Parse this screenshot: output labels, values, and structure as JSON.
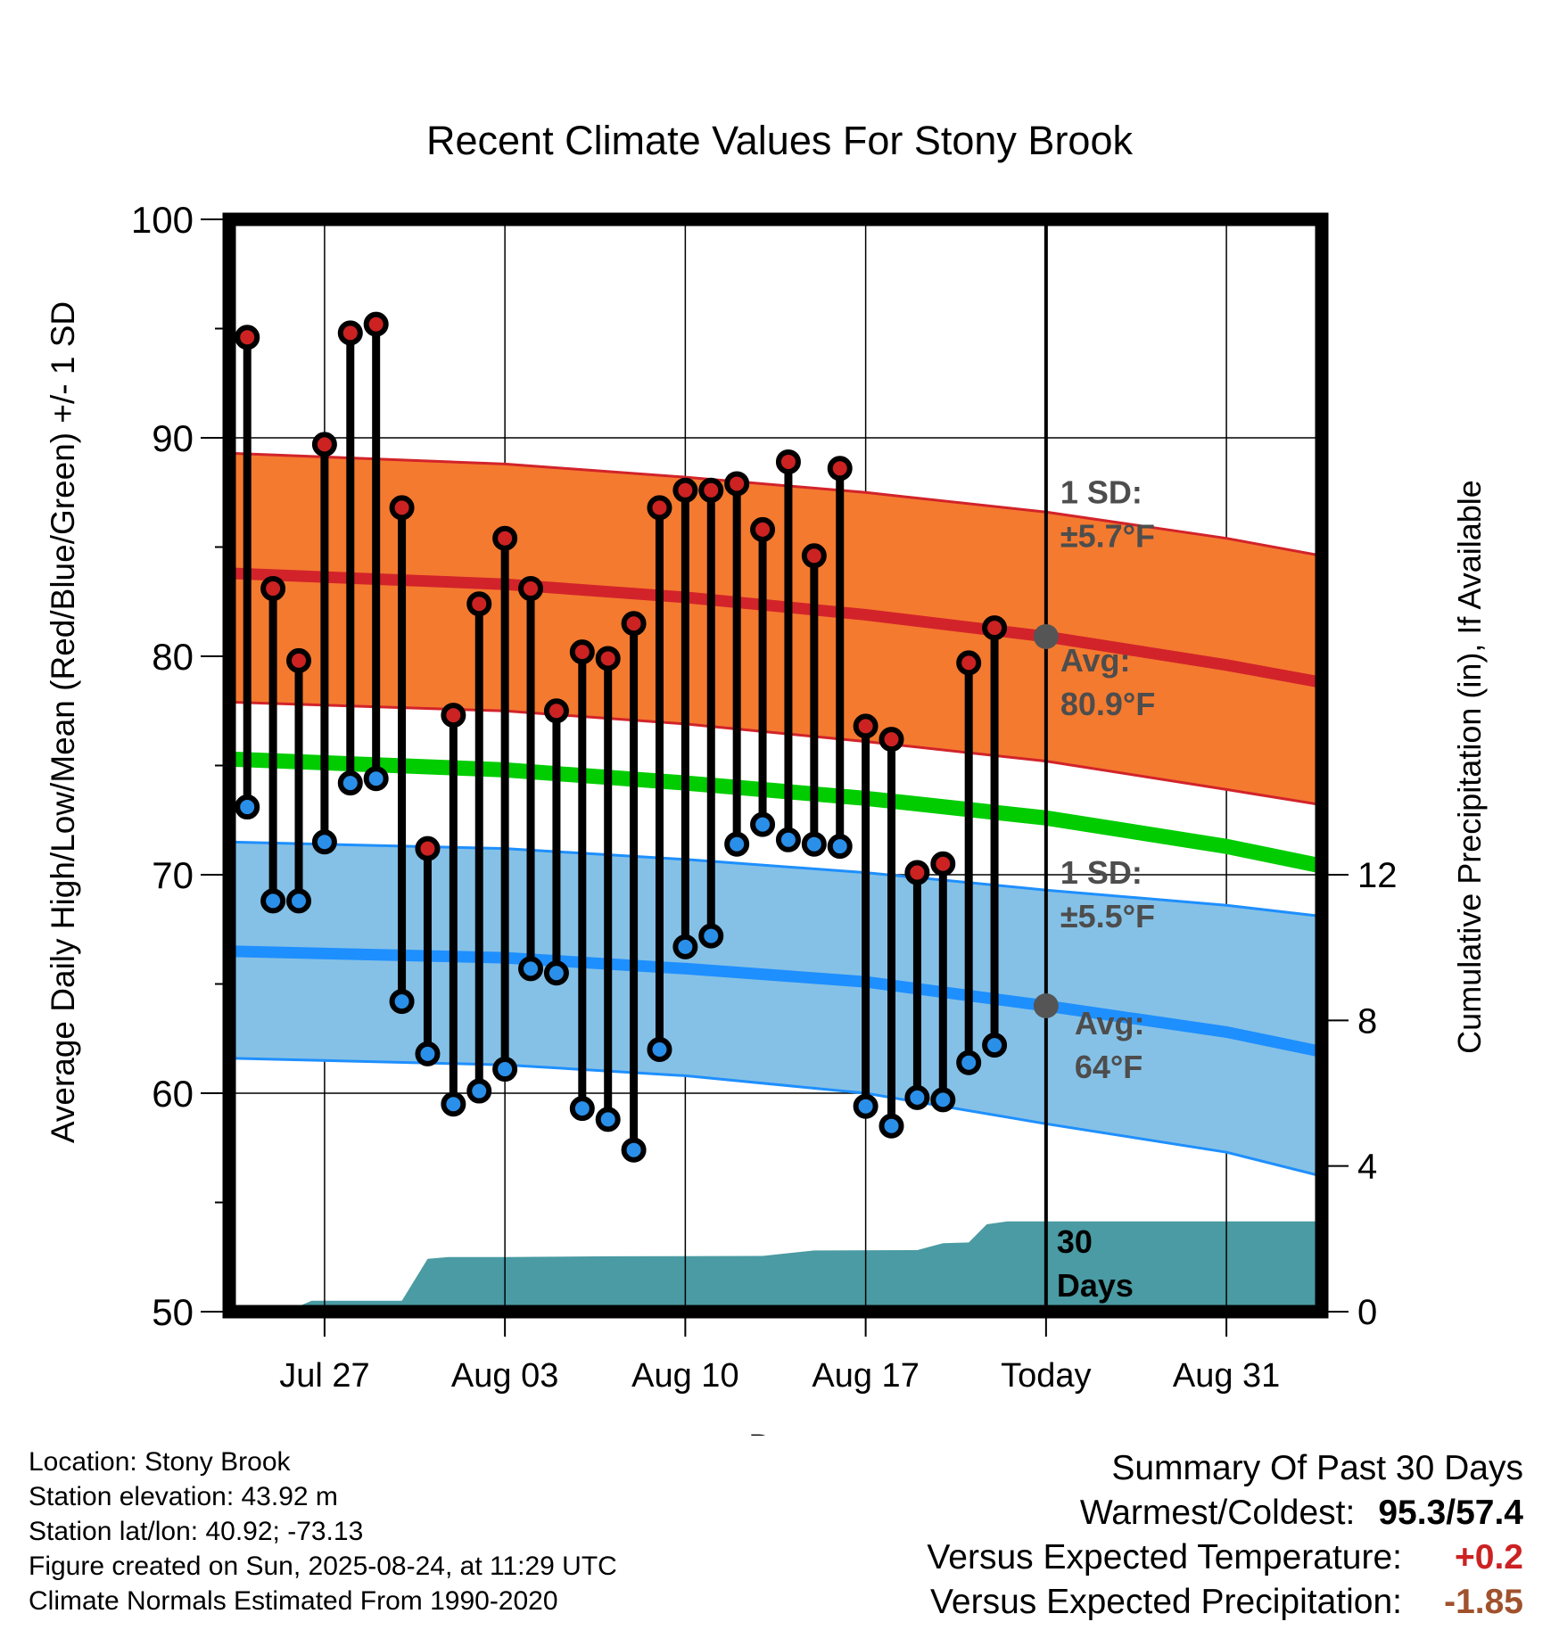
{
  "chart_data": {
    "type": "line",
    "title": "Recent Climate Values For Stony Brook",
    "xlabel": "Day",
    "ylabel": "Average Daily High/Low/Mean (Red/Blue/Green) +/- 1 SD",
    "y2label": "Cumulative Precipitation (in), If Available",
    "ylim": [
      50,
      100
    ],
    "y2lim": [
      0,
      30
    ],
    "yticks": [
      "50",
      "60",
      "70",
      "80",
      "90",
      "100"
    ],
    "y2ticks": [
      "0",
      "4",
      "8",
      "12"
    ],
    "xlim_day_index": [
      -0.7,
      41.7
    ],
    "xticks": [
      {
        "day": 3,
        "label": "Jul 27"
      },
      {
        "day": 10,
        "label": "Aug 03"
      },
      {
        "day": 17,
        "label": "Aug 10"
      },
      {
        "day": 24,
        "label": "Aug 17"
      },
      {
        "day": 31,
        "label": "Today"
      },
      {
        "day": 38,
        "label": "Aug 31"
      }
    ],
    "today_index": 31,
    "normal_high": {
      "avg": [
        [
          -0.7,
          83.8
        ],
        [
          10,
          83.3
        ],
        [
          17,
          82.7
        ],
        [
          24,
          81.9
        ],
        [
          31,
          80.9
        ],
        [
          38,
          79.6
        ],
        [
          41.7,
          78.8
        ]
      ],
      "upper": [
        [
          -0.7,
          89.3
        ],
        [
          10,
          88.8
        ],
        [
          17,
          88.2
        ],
        [
          24,
          87.5
        ],
        [
          31,
          86.6
        ],
        [
          38,
          85.4
        ],
        [
          41.7,
          84.6
        ]
      ],
      "lower": [
        [
          -0.7,
          77.9
        ],
        [
          10,
          77.5
        ],
        [
          17,
          76.9
        ],
        [
          24,
          76.1
        ],
        [
          31,
          75.2
        ],
        [
          38,
          73.9
        ],
        [
          41.7,
          73.2
        ]
      ]
    },
    "normal_mean": [
      [
        -0.7,
        75.3
      ],
      [
        10,
        74.8
      ],
      [
        17,
        74.2
      ],
      [
        24,
        73.5
      ],
      [
        31,
        72.6
      ],
      [
        38,
        71.3
      ],
      [
        41.7,
        70.4
      ]
    ],
    "normal_low": {
      "avg": [
        [
          -0.7,
          66.5
        ],
        [
          10,
          66.2
        ],
        [
          17,
          65.7
        ],
        [
          24,
          65.1
        ],
        [
          31,
          64.0
        ],
        [
          38,
          62.8
        ],
        [
          41.7,
          61.9
        ]
      ],
      "upper": [
        [
          -0.7,
          71.5
        ],
        [
          10,
          71.2
        ],
        [
          17,
          70.7
        ],
        [
          24,
          70.1
        ],
        [
          31,
          69.3
        ],
        [
          38,
          68.6
        ],
        [
          41.7,
          68.1
        ]
      ],
      "lower": [
        [
          -0.7,
          61.6
        ],
        [
          10,
          61.3
        ],
        [
          17,
          60.8
        ],
        [
          24,
          60.0
        ],
        [
          31,
          58.6
        ],
        [
          38,
          57.3
        ],
        [
          41.7,
          56.2
        ]
      ]
    },
    "observed": {
      "day_index": [
        0,
        1,
        2,
        3,
        4,
        5,
        6,
        7,
        8,
        9,
        10,
        11,
        12,
        13,
        14,
        15,
        16,
        17,
        18,
        19,
        20,
        21,
        22,
        23,
        24,
        25,
        26,
        27,
        28,
        29
      ],
      "high": [
        94.6,
        83.1,
        79.8,
        89.7,
        94.8,
        95.2,
        86.8,
        71.2,
        77.3,
        82.4,
        85.4,
        83.1,
        77.5,
        80.2,
        79.9,
        81.5,
        86.8,
        87.6,
        87.6,
        87.9,
        85.8,
        88.9,
        84.6,
        88.6,
        76.8,
        76.2,
        70.1,
        70.5,
        79.7,
        81.3
      ],
      "low": [
        73.1,
        68.8,
        68.8,
        71.5,
        74.2,
        74.4,
        64.2,
        61.8,
        59.5,
        60.1,
        61.1,
        65.7,
        65.5,
        59.3,
        58.8,
        57.4,
        62.0,
        66.7,
        67.2,
        71.4,
        72.3,
        71.6,
        71.4,
        71.3,
        59.4,
        58.5,
        59.8,
        59.7,
        61.4,
        62.2
      ]
    },
    "precip_cumulative": [
      [
        -0.7,
        0
      ],
      [
        1.5,
        0
      ],
      [
        2.5,
        0.3
      ],
      [
        6,
        0.3
      ],
      [
        7,
        1.45
      ],
      [
        7.8,
        1.5
      ],
      [
        10,
        1.5
      ],
      [
        14,
        1.52
      ],
      [
        20,
        1.53
      ],
      [
        22,
        1.68
      ],
      [
        26,
        1.69
      ],
      [
        27,
        1.88
      ],
      [
        28,
        1.9
      ],
      [
        28.7,
        2.4
      ],
      [
        29.5,
        2.48
      ],
      [
        41.7,
        2.48
      ]
    ],
    "annotations": [
      {
        "text1": "1 SD:",
        "text2": "±5.7°F",
        "series": "high_sd"
      },
      {
        "text1": "Avg:",
        "text2": "80.9°F",
        "series": "high_avg"
      },
      {
        "text1": "1 SD:",
        "text2": "±5.5°F",
        "series": "low_sd"
      },
      {
        "text1": "Avg:",
        "text2": "64°F",
        "series": "low_avg"
      },
      {
        "text1": "30",
        "text2": "Days",
        "series": "precip"
      }
    ],
    "colors": {
      "high_band": "#F47A2F",
      "high_line": "#D2232A",
      "mean_line": "#00CC00",
      "low_band": "#85C1E6",
      "low_line": "#1E8FFF",
      "precip": "#4A9BA3",
      "high_dot": "#CC2222",
      "low_dot": "#2A8FE8",
      "annotation": "#4D4D4D"
    }
  },
  "footer": {
    "location": "Location: Stony Brook",
    "elevation": "Station elevation: 43.92 m",
    "latlon": "Station lat/lon: 40.92; -73.13",
    "created": "Figure created on Sun, 2025-08-24, at 11:29 UTC",
    "normals": "Climate Normals Estimated From 1990-2020"
  },
  "summary": {
    "heading": "Summary Of Past 30 Days",
    "warmest_label": "Warmest/Coldest:",
    "warmest_value": "95.3/57.4",
    "temp_label": "Versus Expected Temperature:",
    "temp_value": "+0.2",
    "temp_color": "#CC2222",
    "precip_label": "Versus Expected Precipitation:",
    "precip_value": "-1.85",
    "precip_color": "#A0522D"
  }
}
